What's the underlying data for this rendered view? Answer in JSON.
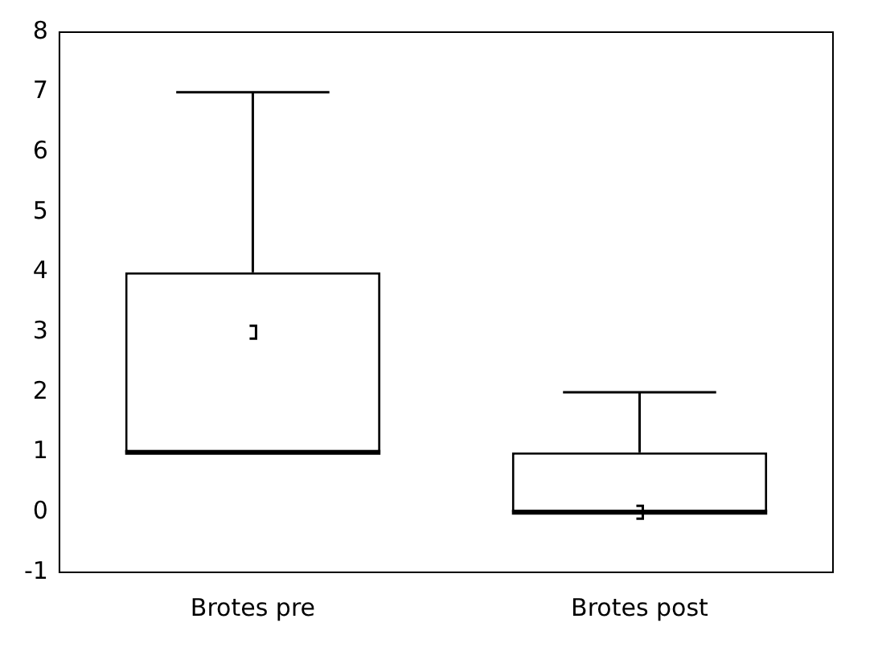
{
  "chart_data": {
    "type": "box",
    "categories": [
      "Brotes pre",
      "Brotes post"
    ],
    "boxes": [
      {
        "low": 1,
        "q1": 1,
        "median": 1,
        "q3": 4,
        "high": 7,
        "mean": 3
      },
      {
        "low": 0,
        "q1": 0,
        "median": 0,
        "q3": 1,
        "high": 2,
        "mean": 0
      }
    ],
    "ylim": [
      -1,
      8
    ],
    "yticks": [
      -1,
      0,
      1,
      2,
      3,
      4,
      5,
      6,
      7,
      8
    ],
    "grid": false,
    "legend": false
  }
}
